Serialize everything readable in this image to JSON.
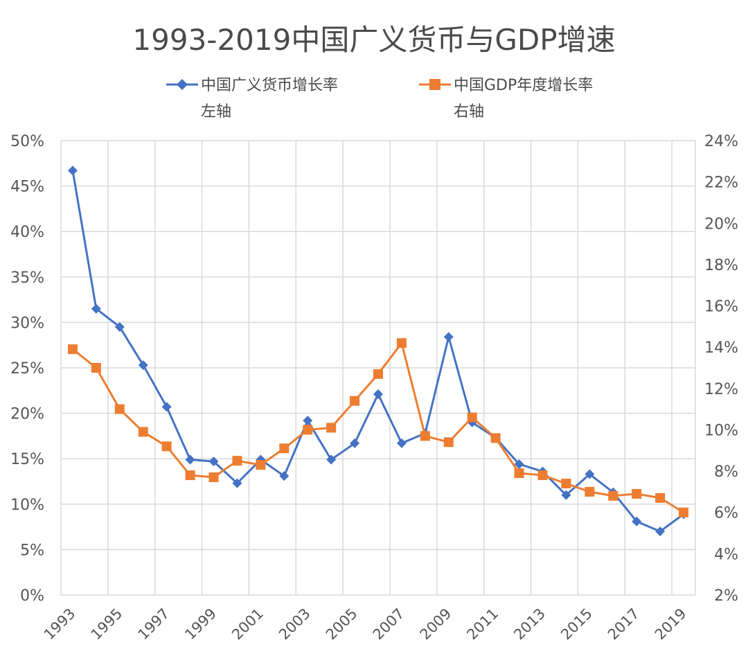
{
  "chart_data": {
    "type": "line",
    "title": "1993-2019中国广义货币与GDP增速",
    "x": [
      1993,
      1994,
      1995,
      1996,
      1997,
      1998,
      1999,
      2000,
      2001,
      2002,
      2003,
      2004,
      2005,
      2006,
      2007,
      2008,
      2009,
      2010,
      2011,
      2012,
      2013,
      2014,
      2015,
      2016,
      2017,
      2018,
      2019
    ],
    "x_tick_labels": [
      "1993",
      "1995",
      "1997",
      "1999",
      "2001",
      "2003",
      "2005",
      "2007",
      "2009",
      "2011",
      "2013",
      "2015",
      "2017",
      "2019"
    ],
    "y_left": {
      "ylim": [
        0,
        50
      ],
      "ticks": [
        "0%",
        "5%",
        "10%",
        "15%",
        "20%",
        "25%",
        "30%",
        "35%",
        "40%",
        "45%",
        "50%"
      ]
    },
    "y_right": {
      "ylim": [
        2,
        24
      ],
      "ticks": [
        "2%",
        "4%",
        "6%",
        "8%",
        "10%",
        "12%",
        "14%",
        "16%",
        "18%",
        "20%",
        "22%",
        "24%"
      ]
    },
    "grid": true,
    "legend_position": "top",
    "series": [
      {
        "name": "中国广义货币增长率",
        "axis_note": "左轴",
        "axis": "left",
        "color": "#4472C4",
        "marker": "diamond",
        "values": [
          46.7,
          31.5,
          29.5,
          25.3,
          20.7,
          14.9,
          14.7,
          12.3,
          14.9,
          13.1,
          19.2,
          14.9,
          16.7,
          22.1,
          16.7,
          17.8,
          28.4,
          19.0,
          17.3,
          14.4,
          13.6,
          11.0,
          13.3,
          11.3,
          8.1,
          7.0,
          8.9
        ]
      },
      {
        "name": "中国GDP年度增长率",
        "axis_note": "右轴",
        "axis": "right",
        "color": "#ED7D31",
        "marker": "square",
        "values": [
          13.9,
          13.0,
          11.0,
          9.9,
          9.2,
          7.8,
          7.7,
          8.5,
          8.3,
          9.1,
          10.0,
          10.1,
          11.4,
          12.7,
          14.2,
          9.7,
          9.4,
          10.6,
          9.6,
          7.9,
          7.8,
          7.4,
          7.0,
          6.8,
          6.9,
          6.7,
          6.0
        ]
      }
    ]
  }
}
